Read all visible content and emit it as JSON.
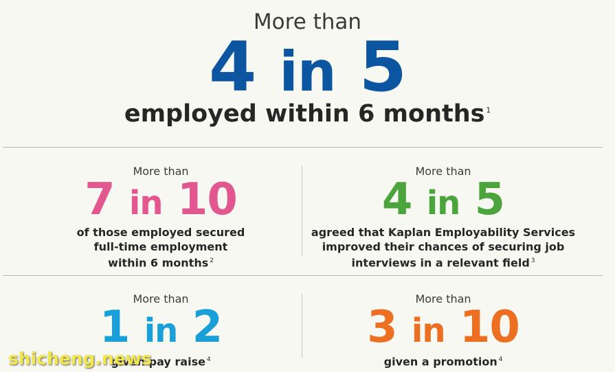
{
  "colors": {
    "blue": "#0c55a1",
    "pink": "#e2578f",
    "green": "#4ba43c",
    "cyan": "#1aa0d8",
    "orange": "#ec6f22"
  },
  "hero": {
    "pre": "More than",
    "num": "4",
    "mid": "in",
    "den": "5",
    "text": "employed within 6 months",
    "note": "1"
  },
  "stats": [
    {
      "pre": "More than",
      "num": "7",
      "mid": "in",
      "den": "10",
      "lines": [
        "of those employed secured",
        "full-time employment",
        "within 6 months"
      ],
      "note": "2"
    },
    {
      "pre": "More than",
      "num": "4",
      "mid": "in",
      "den": "5",
      "lines": [
        "agreed that Kaplan Employability Services",
        "improved their chances of securing job",
        "interviews in a relevant field"
      ],
      "note": "3"
    },
    {
      "pre": "More than",
      "num": "1",
      "mid": "in",
      "den": "2",
      "lines": [
        "given pay raise"
      ],
      "note": "4"
    },
    {
      "pre": "More than",
      "num": "3",
      "mid": "in",
      "den": "10",
      "lines": [
        "given a promotion"
      ],
      "note": "4"
    }
  ],
  "watermark": "shicheng.news"
}
